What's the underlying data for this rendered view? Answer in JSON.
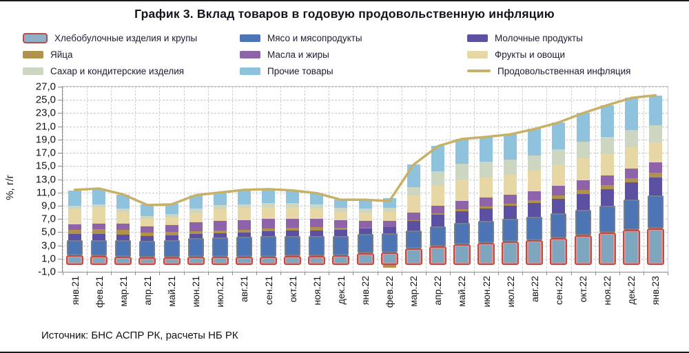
{
  "title": "График 3. Вклад товаров в годовую продовольственную инфляцию",
  "source": "Источник: БНС АСПР РК, расчеты НБ РК",
  "y_axis": {
    "label": "%, г/г",
    "tick_labels": [
      "27,0",
      "25,0",
      "23,0",
      "21,0",
      "19,0",
      "17,0",
      "15,0",
      "13,0",
      "11,0",
      "9,0",
      "7,0",
      "5,0",
      "3,0",
      "1,0",
      "-1,0"
    ],
    "min": -1.0,
    "max": 27.0,
    "step": 2.0
  },
  "legend": [
    {
      "label": "Хлебобулочные изделия и крупы",
      "swatch": "bread",
      "color": "#8fb0c6",
      "border": "#bf4b47"
    },
    {
      "label": "Мясо и мясопродукты",
      "swatch": "bar",
      "color": "#4d74b5"
    },
    {
      "label": "Молочные продукты",
      "swatch": "bar",
      "color": "#5b50a2"
    },
    {
      "label": "Яйца",
      "swatch": "bar",
      "color": "#b1924c"
    },
    {
      "label": "Масла и жиры",
      "swatch": "bar",
      "color": "#8f63a9"
    },
    {
      "label": "Фрукты и овощи",
      "swatch": "bar",
      "color": "#e6d7a5"
    },
    {
      "label": "Сахар и кондитерские изделия",
      "swatch": "bar",
      "color": "#ccd6c0"
    },
    {
      "label": "Прочие товары",
      "swatch": "bar",
      "color": "#8fc2dc"
    },
    {
      "label": "Продовольственная инфляция",
      "swatch": "line",
      "color": "#c7b166"
    }
  ],
  "chart_data": {
    "type": "bar",
    "subtype": "stacked-bars-with-line",
    "grid": "dashed horizontal and vertical",
    "legend_position": "top, 3 columns",
    "ylim": [
      -1.0,
      27.0
    ],
    "ylabel": "%, г/г",
    "xlabel": "",
    "categories": [
      "янв.21",
      "фев.21",
      "мар.21",
      "апр.21",
      "май.21",
      "июн.21",
      "июл.21",
      "авг.21",
      "сен.21",
      "окт.21",
      "ноя.21",
      "дек.21",
      "янв.22",
      "фев.22",
      "мар.22",
      "апр.22",
      "май.22",
      "июн.22",
      "июл.22",
      "авг.22",
      "сен.22",
      "окт.22",
      "ноя.22",
      "дек.22",
      "янв.23"
    ],
    "series": [
      {
        "name": "Хлебобулочные изделия и крупы",
        "color": "#7fa6bf",
        "border": "#bf4b47",
        "values": [
          1.45,
          1.4,
          1.3,
          1.15,
          1.2,
          1.25,
          1.25,
          1.25,
          1.3,
          1.35,
          1.4,
          1.5,
          1.8,
          1.9,
          2.5,
          2.9,
          3.2,
          3.4,
          3.6,
          3.8,
          4.1,
          4.5,
          4.9,
          5.3,
          5.6
        ]
      },
      {
        "name": "Мясо и мясопродукты",
        "color": "#4d74b5",
        "border": "#737f8c",
        "values": [
          2.35,
          2.4,
          2.5,
          2.5,
          2.6,
          2.8,
          3.0,
          3.05,
          3.1,
          3.1,
          3.05,
          2.95,
          2.9,
          2.9,
          2.7,
          3.0,
          3.2,
          3.3,
          3.4,
          3.5,
          3.7,
          3.9,
          4.1,
          4.6,
          5.0
        ]
      },
      {
        "name": "Молочные продукты",
        "color": "#5b50a2",
        "values": [
          0.9,
          0.9,
          0.85,
          0.75,
          0.7,
          0.65,
          0.6,
          0.65,
          0.7,
          0.75,
          0.8,
          0.85,
          0.9,
          0.95,
          1.5,
          1.7,
          1.8,
          1.9,
          2.0,
          2.1,
          2.25,
          2.4,
          2.5,
          2.6,
          2.7
        ]
      },
      {
        "name": "Яйца",
        "color": "#b1924c",
        "values": [
          0.7,
          0.75,
          0.7,
          0.55,
          0.5,
          0.45,
          0.35,
          0.4,
          0.45,
          0.5,
          0.5,
          0.35,
          0.1,
          -0.4,
          0.15,
          0.2,
          0.25,
          0.3,
          0.35,
          0.4,
          0.5,
          0.55,
          0.6,
          0.65,
          0.7
        ]
      },
      {
        "name": "Масла и жиры",
        "color": "#8f63a9",
        "values": [
          0.8,
          0.85,
          0.9,
          0.95,
          1.05,
          1.3,
          1.55,
          1.5,
          1.45,
          1.35,
          1.25,
          1.15,
          1.05,
          1.0,
          1.1,
          1.2,
          1.25,
          1.3,
          1.35,
          1.4,
          1.45,
          1.5,
          1.5,
          1.5,
          1.5
        ]
      },
      {
        "name": "Фрукты и овощи",
        "color": "#e6d7a5",
        "values": [
          2.3,
          2.45,
          1.85,
          1.15,
          1.2,
          1.55,
          1.7,
          1.8,
          1.8,
          1.75,
          1.6,
          1.3,
          1.25,
          1.3,
          2.6,
          3.0,
          3.2,
          3.1,
          3.0,
          3.1,
          3.2,
          3.3,
          3.2,
          3.2,
          3.1
        ]
      },
      {
        "name": "Сахар и кондитерские изделия",
        "color": "#ccd6c0",
        "values": [
          0.5,
          0.5,
          0.45,
          0.4,
          0.45,
          0.55,
          0.6,
          0.6,
          0.6,
          0.6,
          0.6,
          0.55,
          0.55,
          0.6,
          1.3,
          2.2,
          2.4,
          2.4,
          2.3,
          2.3,
          2.3,
          2.5,
          2.55,
          2.6,
          2.6
        ]
      },
      {
        "name": "Прочие товары",
        "color": "#8fc2dc",
        "values": [
          2.3,
          2.35,
          2.15,
          1.75,
          1.6,
          2.05,
          1.95,
          2.15,
          2.1,
          1.9,
          1.7,
          1.25,
          1.35,
          1.5,
          3.35,
          3.8,
          3.8,
          3.7,
          3.8,
          4.0,
          4.1,
          4.35,
          4.85,
          4.85,
          4.4
        ]
      }
    ],
    "line_series": {
      "name": "Продовольственная инфляция",
      "color": "#c7b166",
      "values": [
        11.4,
        11.6,
        10.7,
        9.1,
        9.2,
        10.6,
        11.0,
        11.4,
        11.5,
        11.3,
        10.9,
        9.9,
        9.9,
        9.7,
        15.2,
        18.0,
        19.1,
        19.4,
        19.8,
        20.6,
        21.6,
        23.0,
        24.2,
        25.3,
        25.7
      ]
    }
  }
}
